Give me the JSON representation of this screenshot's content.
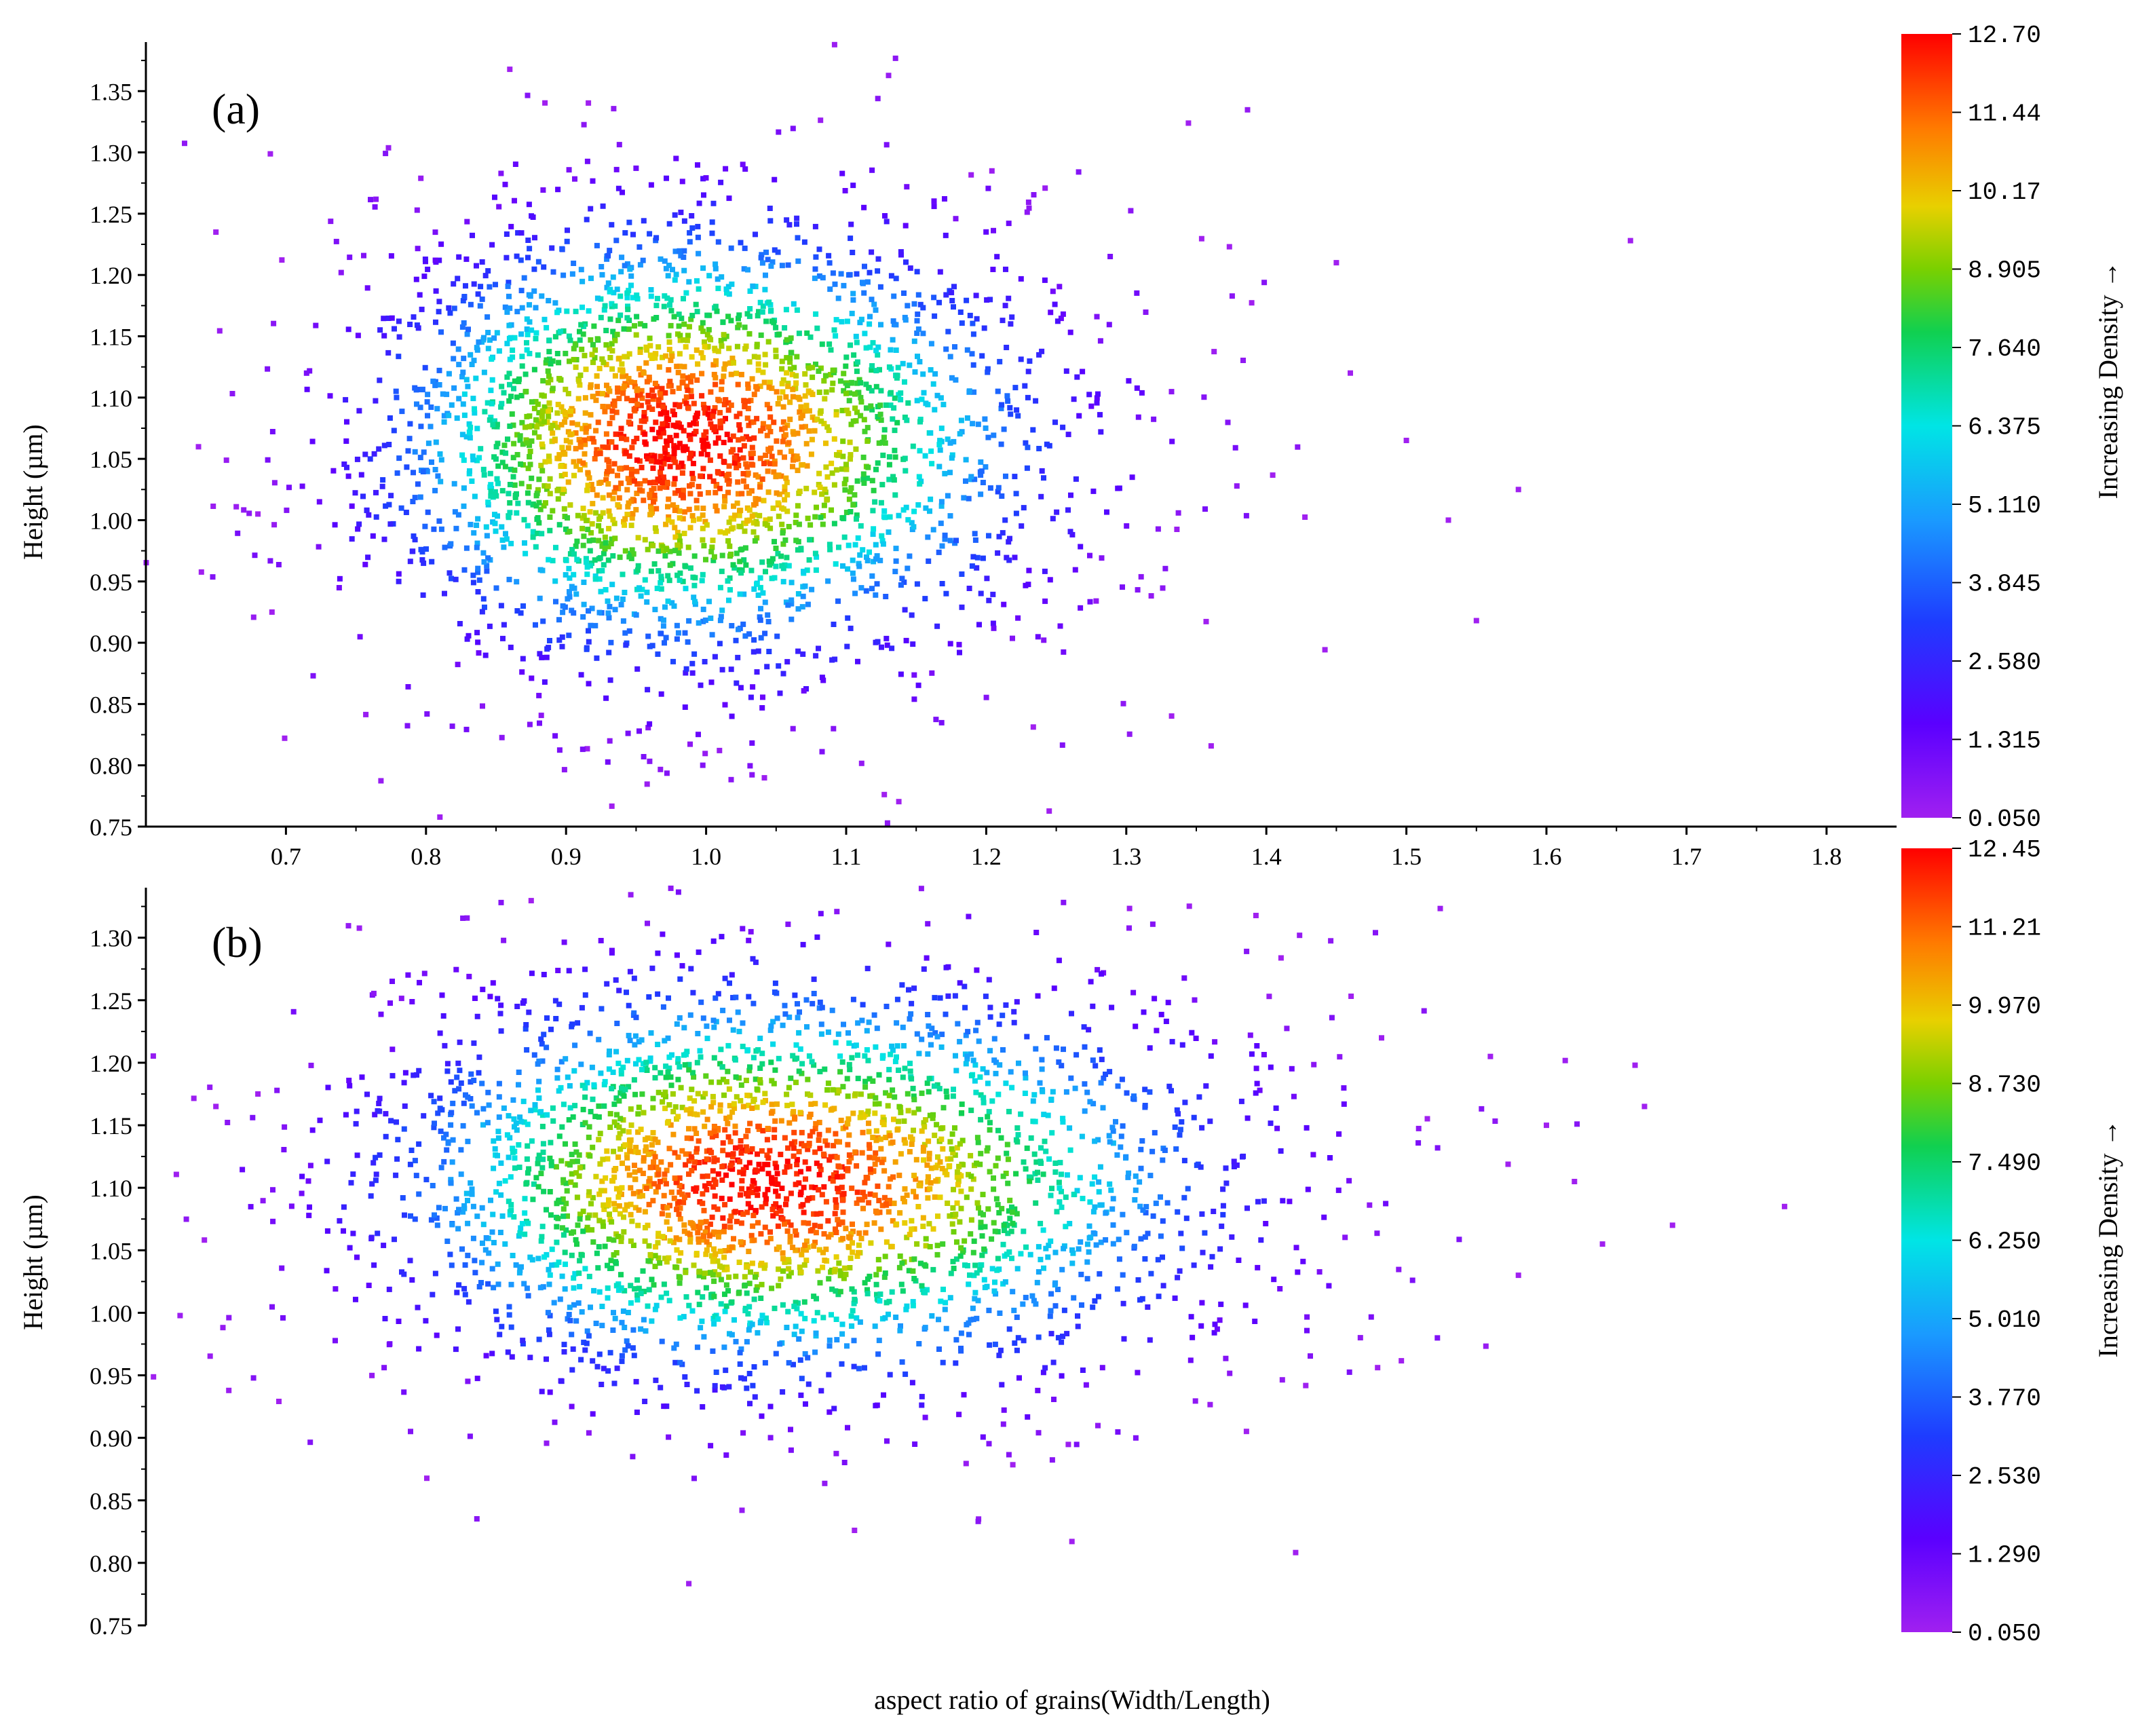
{
  "chart_data": [
    {
      "type": "scatter",
      "panel_label": "(a)",
      "xlabel": "",
      "ylabel": "Height (µm)",
      "xlim": [
        0.6,
        1.85
      ],
      "ylim": [
        0.75,
        1.39
      ],
      "x_ticks": [
        "0.7",
        "0.8",
        "0.9",
        "1.0",
        "1.1",
        "1.2",
        "1.3",
        "1.4",
        "1.5",
        "1.6",
        "1.7",
        "1.8"
      ],
      "y_ticks": [
        "0.75",
        "0.80",
        "0.85",
        "0.90",
        "0.95",
        "1.00",
        "1.05",
        "1.10",
        "1.15",
        "1.20",
        "1.25",
        "1.30",
        "1.35"
      ],
      "cluster_center": [
        0.98,
        1.065
      ],
      "cluster_spread": [
        0.12,
        0.095
      ],
      "n_points": 3000,
      "outliers": [
        [
          0.65,
          1.235
        ],
        [
          0.68,
          1.005
        ],
        [
          0.69,
          0.925
        ],
        [
          1.53,
          1.0
        ],
        [
          1.55,
          0.918
        ],
        [
          1.58,
          1.025
        ],
        [
          1.66,
          1.228
        ],
        [
          1.5,
          1.065
        ],
        [
          1.46,
          1.12
        ],
        [
          1.45,
          1.21
        ]
      ],
      "colorbar": {
        "title": "Increasing Density →",
        "ticks": [
          "12.70",
          "11.44",
          "10.17",
          "8.905",
          "7.640",
          "6.375",
          "5.110",
          "3.845",
          "2.580",
          "1.315",
          "0.050"
        ],
        "min": 0.05,
        "max": 12.7
      }
    },
    {
      "type": "scatter",
      "panel_label": "(b)",
      "xlabel": "aspect ratio of grains(Width/Length)",
      "ylabel": "Height (µm)",
      "xlim": [
        0.6,
        1.85
      ],
      "ylim": [
        0.75,
        1.34
      ],
      "x_ticks": [],
      "y_ticks": [
        "0.75",
        "0.80",
        "0.85",
        "0.90",
        "0.95",
        "1.00",
        "1.05",
        "1.10",
        "1.15",
        "1.20",
        "1.25",
        "1.30"
      ],
      "cluster_center": [
        1.04,
        1.105
      ],
      "cluster_spread": [
        0.15,
        0.085
      ],
      "n_points": 3000,
      "outliers": [
        [
          0.65,
          1.165
        ],
        [
          0.68,
          1.175
        ],
        [
          1.62,
          1.105
        ],
        [
          1.64,
          1.055
        ],
        [
          1.67,
          1.165
        ],
        [
          1.69,
          1.07
        ],
        [
          1.77,
          1.085
        ],
        [
          1.58,
          1.03
        ],
        [
          1.6,
          1.15
        ],
        [
          1.56,
          1.205
        ]
      ],
      "colorbar": {
        "title": "Increasing Density →",
        "ticks": [
          "12.45",
          "11.21",
          "9.970",
          "8.730",
          "7.490",
          "6.250",
          "5.010",
          "3.770",
          "2.530",
          "1.290",
          "0.050"
        ],
        "min": 0.05,
        "max": 12.45
      }
    }
  ]
}
